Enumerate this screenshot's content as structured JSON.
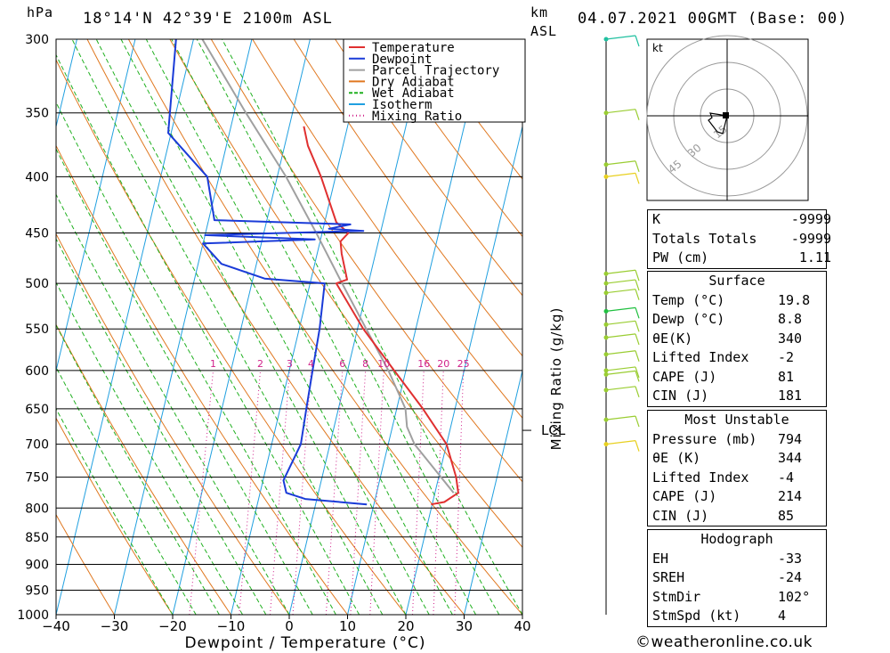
{
  "header": {
    "unit_left": "hPa",
    "location": "18°14'N  42°39'E  2100m  ASL",
    "unit_km": "km",
    "unit_asl": "ASL",
    "datetime": "04.07.2021  00GMT  (Base: 00)"
  },
  "chart_data": {
    "type": "skew-t",
    "xlabel": "Dewpoint / Temperature (°C)",
    "ylabel": "hPa",
    "mixing_ratio_label": "Mixing Ratio (g/kg)",
    "lcl_label": "LCL",
    "hodograph_unit": "kt",
    "hodograph_rings": [
      "15",
      "30",
      "45"
    ],
    "pressure_levels": [
      300,
      350,
      400,
      450,
      500,
      550,
      600,
      650,
      700,
      750,
      800,
      850,
      900,
      950,
      1000
    ],
    "x_ticks": [
      -40,
      -30,
      -20,
      -10,
      0,
      10,
      20,
      30,
      40
    ],
    "xlim": [
      -40,
      40
    ],
    "mixing_ratio_ticks": [
      "1",
      "2",
      "3",
      "4",
      "6",
      "8",
      "10",
      "16",
      "20",
      "25"
    ],
    "legend": [
      "Temperature",
      "Dewpoint",
      "Parcel Trajectory",
      "Dry Adiabat",
      "Wet Adiabat",
      "Isotherm",
      "Mixing Ratio"
    ],
    "colors": {
      "temperature": "#e03030",
      "dewpoint": "#1a3bd8",
      "parcel": "#a0a0a0",
      "dry_adiabat": "#e07820",
      "wet_adiabat": "#20b020",
      "isotherm": "#20a0e0",
      "mixing_ratio": "#d0208a"
    },
    "temperature_profile": [
      {
        "p": 794,
        "t": 19.8
      },
      {
        "p": 790,
        "t": 22.0
      },
      {
        "p": 775,
        "t": 24.0
      },
      {
        "p": 750,
        "t": 23.0
      },
      {
        "p": 700,
        "t": 20.0
      },
      {
        "p": 650,
        "t": 14.5
      },
      {
        "p": 600,
        "t": 8.0
      },
      {
        "p": 550,
        "t": 1.0
      },
      {
        "p": 500,
        "t": -5.5
      },
      {
        "p": 496,
        "t": -3.8
      },
      {
        "p": 470,
        "t": -5.8
      },
      {
        "p": 458,
        "t": -6.5
      },
      {
        "p": 450,
        "t": -5.5
      },
      {
        "p": 440,
        "t": -8.0
      },
      {
        "p": 400,
        "t": -12.5
      },
      {
        "p": 375,
        "t": -16.0
      },
      {
        "p": 360,
        "t": -17.5
      }
    ],
    "dewpoint_profile": [
      {
        "p": 794,
        "t": 8.8
      },
      {
        "p": 785,
        "t": -2.0
      },
      {
        "p": 775,
        "t": -5.5
      },
      {
        "p": 755,
        "t": -6.5
      },
      {
        "p": 700,
        "t": -5.0
      },
      {
        "p": 650,
        "t": -5.5
      },
      {
        "p": 600,
        "t": -6.0
      },
      {
        "p": 550,
        "t": -6.5
      },
      {
        "p": 500,
        "t": -7.5
      },
      {
        "p": 495,
        "t": -18.0
      },
      {
        "p": 480,
        "t": -26.0
      },
      {
        "p": 460,
        "t": -30.0
      },
      {
        "p": 456,
        "t": -11.0
      },
      {
        "p": 452,
        "t": -30.0
      },
      {
        "p": 448,
        "t": -3.0
      },
      {
        "p": 446,
        "t": -9.0
      },
      {
        "p": 442,
        "t": -5.5
      },
      {
        "p": 438,
        "t": -29.0
      },
      {
        "p": 400,
        "t": -32.0
      },
      {
        "p": 365,
        "t": -40.5
      },
      {
        "p": 300,
        "t": -43.0
      }
    ],
    "parcel_profile": [
      {
        "p": 775,
        "t": 23.2
      },
      {
        "p": 700,
        "t": 14.5
      },
      {
        "p": 675,
        "t": 12.5
      },
      {
        "p": 650,
        "t": 11.5
      },
      {
        "p": 600,
        "t": 7.0
      },
      {
        "p": 550,
        "t": 1.5
      },
      {
        "p": 500,
        "t": -4.5
      },
      {
        "p": 450,
        "t": -11.0
      },
      {
        "p": 400,
        "t": -18.5
      },
      {
        "p": 350,
        "t": -28.0
      },
      {
        "p": 300,
        "t": -38.5
      }
    ],
    "lcl_pressure": 680
  },
  "legend_items": [
    {
      "label": "Temperature",
      "color": "#e03030",
      "style": "solid"
    },
    {
      "label": "Dewpoint",
      "color": "#1a3bd8",
      "style": "solid"
    },
    {
      "label": "Parcel Trajectory",
      "color": "#a0a0a0",
      "style": "solid"
    },
    {
      "label": "Dry Adiabat",
      "color": "#e07820",
      "style": "solid"
    },
    {
      "label": "Wet Adiabat",
      "color": "#20b020",
      "style": "dashed"
    },
    {
      "label": "Isotherm",
      "color": "#20a0e0",
      "style": "solid"
    },
    {
      "label": "Mixing Ratio",
      "color": "#d0208a",
      "style": "dotted"
    }
  ],
  "indices": {
    "k_label": "K",
    "k_value": "-9999",
    "tt_label": "Totals Totals",
    "tt_value": "-9999",
    "pw_label": "PW (cm)",
    "pw_value": "1.11"
  },
  "surface": {
    "title": "Surface",
    "temp_label": "Temp (°C)",
    "temp_value": "19.8",
    "dewp_label": "Dewp (°C)",
    "dewp_value": "8.8",
    "theta_label": "θE(K)",
    "theta_value": "340",
    "li_label": "Lifted Index",
    "li_value": "-2",
    "cape_label": "CAPE (J)",
    "cape_value": "81",
    "cin_label": "CIN (J)",
    "cin_value": "181"
  },
  "most_unstable": {
    "title": "Most Unstable",
    "pressure_label": "Pressure (mb)",
    "pressure_value": "794",
    "theta_label": "θE (K)",
    "theta_value": "344",
    "li_label": "Lifted Index",
    "li_value": "-4",
    "cape_label": "CAPE (J)",
    "cape_value": "214",
    "cin_label": "CIN (J)",
    "cin_value": "85"
  },
  "hodograph": {
    "title": "Hodograph",
    "eh_label": "EH",
    "eh_value": "-33",
    "sreh_label": "SREH",
    "sreh_value": "-24",
    "stmdir_label": "StmDir",
    "stmdir_value": "102°",
    "stmspd_label": "StmSpd (kt)",
    "stmspd_value": "4"
  },
  "credit": "©weatheronline.co.uk"
}
